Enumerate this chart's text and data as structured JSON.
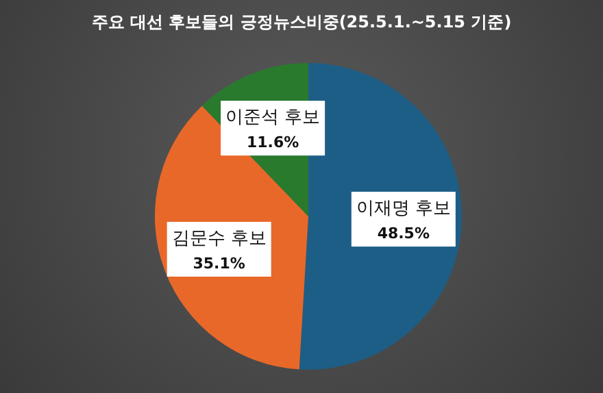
{
  "chart_data": {
    "type": "pie",
    "title": "주요 대선 후보들의 긍정뉴스비중(25.5.1.~5.15 기준)",
    "categories": [
      "이재명 후보",
      "김문수 후보",
      "이준석 후보"
    ],
    "values": [
      48.5,
      35.1,
      11.6
    ],
    "value_labels": [
      "48.5%",
      "35.1%",
      "11.6%"
    ],
    "colors": [
      "#1d5e86",
      "#e8682a",
      "#2a7a2e"
    ],
    "legend": false
  }
}
